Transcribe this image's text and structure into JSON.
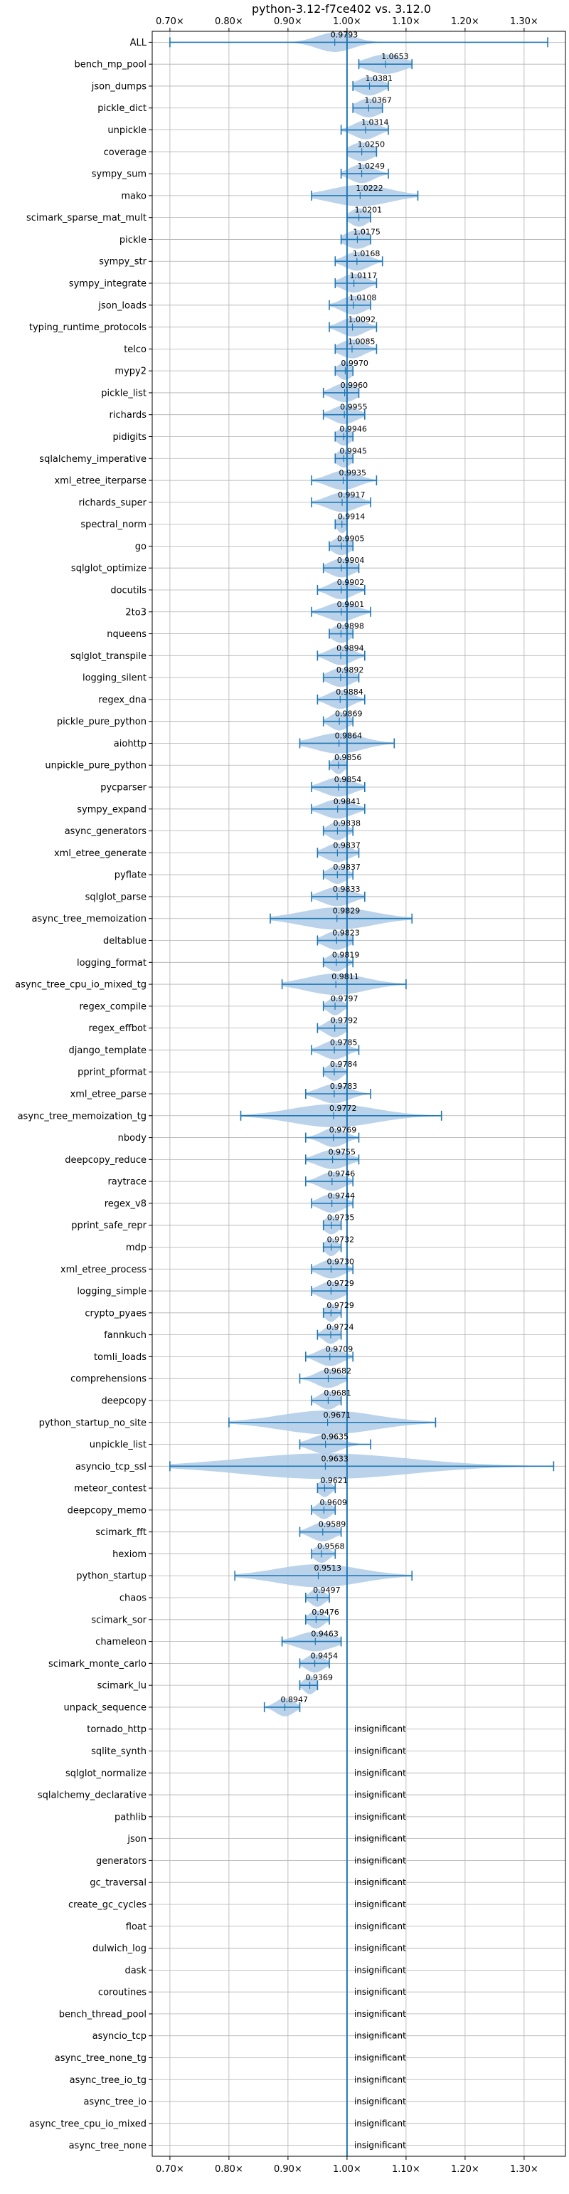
{
  "chart_data": {
    "type": "violin",
    "title": "python-3.12-f7ce402 vs. 3.12.0",
    "xlim": [
      0.67,
      1.37
    ],
    "x_ticks": [
      0.7,
      0.8,
      0.9,
      1.0,
      1.1,
      1.2,
      1.3
    ],
    "x_tick_labels": [
      "0.70×",
      "0.80×",
      "0.90×",
      "1.00×",
      "1.10×",
      "1.20×",
      "1.30×"
    ],
    "reference_line": 1.0,
    "grid": true,
    "colors": {
      "line": "#1f77b4",
      "violin": "#aecbe6",
      "grid": "#b0b0b0",
      "axis": "#000000"
    },
    "insignificant_label": "insignificant",
    "benchmarks": [
      {
        "name": "ALL",
        "mean": 0.9793,
        "label": "0.9793",
        "min": 0.7,
        "max": 1.34,
        "spread": 0.03
      },
      {
        "name": "bench_mp_pool",
        "mean": 1.0653,
        "label": "1.0653",
        "min": 1.02,
        "max": 1.11,
        "spread": 0.03
      },
      {
        "name": "json_dumps",
        "mean": 1.0381,
        "label": "1.0381",
        "min": 1.01,
        "max": 1.07,
        "spread": 0.02
      },
      {
        "name": "pickle_dict",
        "mean": 1.0367,
        "label": "1.0367",
        "min": 1.01,
        "max": 1.06,
        "spread": 0.02
      },
      {
        "name": "unpickle",
        "mean": 1.0314,
        "label": "1.0314",
        "min": 0.99,
        "max": 1.07,
        "spread": 0.02
      },
      {
        "name": "coverage",
        "mean": 1.025,
        "label": "1.0250",
        "min": 1.0,
        "max": 1.05,
        "spread": 0.02
      },
      {
        "name": "sympy_sum",
        "mean": 1.0249,
        "label": "1.0249",
        "min": 0.99,
        "max": 1.07,
        "spread": 0.02
      },
      {
        "name": "mako",
        "mean": 1.0222,
        "label": "1.0222",
        "min": 0.94,
        "max": 1.12,
        "spread": 0.05
      },
      {
        "name": "scimark_sparse_mat_mult",
        "mean": 1.0201,
        "label": "1.0201",
        "min": 1.0,
        "max": 1.04,
        "spread": 0.015
      },
      {
        "name": "pickle",
        "mean": 1.0175,
        "label": "1.0175",
        "min": 0.99,
        "max": 1.04,
        "spread": 0.02
      },
      {
        "name": "sympy_str",
        "mean": 1.0168,
        "label": "1.0168",
        "min": 0.98,
        "max": 1.06,
        "spread": 0.02
      },
      {
        "name": "sympy_integrate",
        "mean": 1.0117,
        "label": "1.0117",
        "min": 0.98,
        "max": 1.05,
        "spread": 0.02
      },
      {
        "name": "json_loads",
        "mean": 1.0108,
        "label": "1.0108",
        "min": 0.97,
        "max": 1.04,
        "spread": 0.02
      },
      {
        "name": "typing_runtime_protocols",
        "mean": 1.0092,
        "label": "1.0092",
        "min": 0.97,
        "max": 1.05,
        "spread": 0.02
      },
      {
        "name": "telco",
        "mean": 1.0085,
        "label": "1.0085",
        "min": 0.98,
        "max": 1.05,
        "spread": 0.02
      },
      {
        "name": "mypy2",
        "mean": 0.997,
        "label": "0.9970",
        "min": 0.98,
        "max": 1.01,
        "spread": 0.012
      },
      {
        "name": "pickle_list",
        "mean": 0.996,
        "label": "0.9960",
        "min": 0.96,
        "max": 1.02,
        "spread": 0.02
      },
      {
        "name": "richards",
        "mean": 0.9955,
        "label": "0.9955",
        "min": 0.96,
        "max": 1.03,
        "spread": 0.02
      },
      {
        "name": "pidigits",
        "mean": 0.9946,
        "label": "0.9946",
        "min": 0.98,
        "max": 1.01,
        "spread": 0.012
      },
      {
        "name": "sqlalchemy_imperative",
        "mean": 0.9945,
        "label": "0.9945",
        "min": 0.98,
        "max": 1.01,
        "spread": 0.012
      },
      {
        "name": "xml_etree_iterparse",
        "mean": 0.9935,
        "label": "0.9935",
        "min": 0.94,
        "max": 1.05,
        "spread": 0.025
      },
      {
        "name": "richards_super",
        "mean": 0.9917,
        "label": "0.9917",
        "min": 0.94,
        "max": 1.04,
        "spread": 0.025
      },
      {
        "name": "spectral_norm",
        "mean": 0.9914,
        "label": "0.9914",
        "min": 0.98,
        "max": 1.0,
        "spread": 0.008
      },
      {
        "name": "go",
        "mean": 0.9905,
        "label": "0.9905",
        "min": 0.97,
        "max": 1.01,
        "spread": 0.015
      },
      {
        "name": "sqlglot_optimize",
        "mean": 0.9904,
        "label": "0.9904",
        "min": 0.96,
        "max": 1.02,
        "spread": 0.02
      },
      {
        "name": "docutils",
        "mean": 0.9902,
        "label": "0.9902",
        "min": 0.95,
        "max": 1.03,
        "spread": 0.02
      },
      {
        "name": "2to3",
        "mean": 0.9901,
        "label": "0.9901",
        "min": 0.94,
        "max": 1.04,
        "spread": 0.025
      },
      {
        "name": "nqueens",
        "mean": 0.9898,
        "label": "0.9898",
        "min": 0.97,
        "max": 1.01,
        "spread": 0.015
      },
      {
        "name": "sqlglot_transpile",
        "mean": 0.9894,
        "label": "0.9894",
        "min": 0.95,
        "max": 1.03,
        "spread": 0.02
      },
      {
        "name": "logging_silent",
        "mean": 0.9892,
        "label": "0.9892",
        "min": 0.96,
        "max": 1.02,
        "spread": 0.02
      },
      {
        "name": "regex_dna",
        "mean": 0.9884,
        "label": "0.9884",
        "min": 0.95,
        "max": 1.03,
        "spread": 0.02
      },
      {
        "name": "pickle_pure_python",
        "mean": 0.9869,
        "label": "0.9869",
        "min": 0.96,
        "max": 1.01,
        "spread": 0.015
      },
      {
        "name": "aiohttp",
        "mean": 0.9864,
        "label": "0.9864",
        "min": 0.92,
        "max": 1.08,
        "spread": 0.04
      },
      {
        "name": "unpickle_pure_python",
        "mean": 0.9856,
        "label": "0.9856",
        "min": 0.97,
        "max": 1.0,
        "spread": 0.01
      },
      {
        "name": "pycparser",
        "mean": 0.9854,
        "label": "0.9854",
        "min": 0.94,
        "max": 1.03,
        "spread": 0.025
      },
      {
        "name": "sympy_expand",
        "mean": 0.9841,
        "label": "0.9841",
        "min": 0.94,
        "max": 1.03,
        "spread": 0.025
      },
      {
        "name": "async_generators",
        "mean": 0.9838,
        "label": "0.9838",
        "min": 0.96,
        "max": 1.01,
        "spread": 0.015
      },
      {
        "name": "xml_etree_generate",
        "mean": 0.9837,
        "label": "0.9837",
        "min": 0.95,
        "max": 1.02,
        "spread": 0.02
      },
      {
        "name": "pyflate",
        "mean": 0.9837,
        "label": "0.9837",
        "min": 0.96,
        "max": 1.01,
        "spread": 0.015
      },
      {
        "name": "sqlglot_parse",
        "mean": 0.9833,
        "label": "0.9833",
        "min": 0.94,
        "max": 1.03,
        "spread": 0.025
      },
      {
        "name": "async_tree_memoization",
        "mean": 0.9829,
        "label": "0.9829",
        "min": 0.87,
        "max": 1.11,
        "spread": 0.06
      },
      {
        "name": "deltablue",
        "mean": 0.9823,
        "label": "0.9823",
        "min": 0.95,
        "max": 1.01,
        "spread": 0.02
      },
      {
        "name": "logging_format",
        "mean": 0.9819,
        "label": "0.9819",
        "min": 0.96,
        "max": 1.01,
        "spread": 0.015
      },
      {
        "name": "async_tree_cpu_io_mixed_tg",
        "mean": 0.9811,
        "label": "0.9811",
        "min": 0.89,
        "max": 1.1,
        "spread": 0.05
      },
      {
        "name": "regex_compile",
        "mean": 0.9797,
        "label": "0.9797",
        "min": 0.96,
        "max": 1.0,
        "spread": 0.012
      },
      {
        "name": "regex_effbot",
        "mean": 0.9792,
        "label": "0.9792",
        "min": 0.95,
        "max": 1.0,
        "spread": 0.015
      },
      {
        "name": "django_template",
        "mean": 0.9785,
        "label": "0.9785",
        "min": 0.94,
        "max": 1.02,
        "spread": 0.02
      },
      {
        "name": "pprint_pformat",
        "mean": 0.9784,
        "label": "0.9784",
        "min": 0.96,
        "max": 1.0,
        "spread": 0.012
      },
      {
        "name": "xml_etree_parse",
        "mean": 0.9783,
        "label": "0.9783",
        "min": 0.93,
        "max": 1.04,
        "spread": 0.025
      },
      {
        "name": "async_tree_memoization_tg",
        "mean": 0.9772,
        "label": "0.9772",
        "min": 0.82,
        "max": 1.16,
        "spread": 0.07
      },
      {
        "name": "nbody",
        "mean": 0.9769,
        "label": "0.9769",
        "min": 0.93,
        "max": 1.02,
        "spread": 0.02
      },
      {
        "name": "deepcopy_reduce",
        "mean": 0.9755,
        "label": "0.9755",
        "min": 0.93,
        "max": 1.02,
        "spread": 0.025
      },
      {
        "name": "raytrace",
        "mean": 0.9746,
        "label": "0.9746",
        "min": 0.93,
        "max": 1.01,
        "spread": 0.02
      },
      {
        "name": "regex_v8",
        "mean": 0.9744,
        "label": "0.9744",
        "min": 0.94,
        "max": 1.01,
        "spread": 0.02
      },
      {
        "name": "pprint_safe_repr",
        "mean": 0.9735,
        "label": "0.9735",
        "min": 0.96,
        "max": 0.99,
        "spread": 0.012
      },
      {
        "name": "mdp",
        "mean": 0.9732,
        "label": "0.9732",
        "min": 0.96,
        "max": 0.99,
        "spread": 0.01
      },
      {
        "name": "xml_etree_process",
        "mean": 0.973,
        "label": "0.9730",
        "min": 0.94,
        "max": 1.01,
        "spread": 0.02
      },
      {
        "name": "logging_simple",
        "mean": 0.9729,
        "label": "0.9729",
        "min": 0.94,
        "max": 1.0,
        "spread": 0.02
      },
      {
        "name": "crypto_pyaes",
        "mean": 0.9729,
        "label": "0.9729",
        "min": 0.96,
        "max": 0.99,
        "spread": 0.01
      },
      {
        "name": "fannkuch",
        "mean": 0.9724,
        "label": "0.9724",
        "min": 0.95,
        "max": 0.99,
        "spread": 0.012
      },
      {
        "name": "tomli_loads",
        "mean": 0.9709,
        "label": "0.9709",
        "min": 0.93,
        "max": 1.01,
        "spread": 0.02
      },
      {
        "name": "comprehensions",
        "mean": 0.9682,
        "label": "0.9682",
        "min": 0.92,
        "max": 1.0,
        "spread": 0.02
      },
      {
        "name": "deepcopy",
        "mean": 0.9681,
        "label": "0.9681",
        "min": 0.94,
        "max": 0.99,
        "spread": 0.015
      },
      {
        "name": "python_startup_no_site",
        "mean": 0.9671,
        "label": "0.9671",
        "min": 0.8,
        "max": 1.15,
        "spread": 0.08
      },
      {
        "name": "unpickle_list",
        "mean": 0.9635,
        "label": "0.9635",
        "min": 0.92,
        "max": 1.04,
        "spread": 0.025
      },
      {
        "name": "asyncio_tcp_ssl",
        "mean": 0.9633,
        "label": "0.9633",
        "min": 0.7,
        "max": 1.35,
        "spread": 0.14
      },
      {
        "name": "meteor_contest",
        "mean": 0.9621,
        "label": "0.9621",
        "min": 0.95,
        "max": 0.98,
        "spread": 0.01
      },
      {
        "name": "deepcopy_memo",
        "mean": 0.9609,
        "label": "0.9609",
        "min": 0.94,
        "max": 0.98,
        "spread": 0.012
      },
      {
        "name": "scimark_fft",
        "mean": 0.9589,
        "label": "0.9589",
        "min": 0.92,
        "max": 0.99,
        "spread": 0.02
      },
      {
        "name": "hexiom",
        "mean": 0.9568,
        "label": "0.9568",
        "min": 0.94,
        "max": 0.98,
        "spread": 0.012
      },
      {
        "name": "python_startup",
        "mean": 0.9513,
        "label": "0.9513",
        "min": 0.81,
        "max": 1.11,
        "spread": 0.07
      },
      {
        "name": "chaos",
        "mean": 0.9497,
        "label": "0.9497",
        "min": 0.93,
        "max": 0.97,
        "spread": 0.012
      },
      {
        "name": "scimark_sor",
        "mean": 0.9476,
        "label": "0.9476",
        "min": 0.93,
        "max": 0.97,
        "spread": 0.012
      },
      {
        "name": "chameleon",
        "mean": 0.9463,
        "label": "0.9463",
        "min": 0.89,
        "max": 0.99,
        "spread": 0.03
      },
      {
        "name": "scimark_monte_carlo",
        "mean": 0.9454,
        "label": "0.9454",
        "min": 0.92,
        "max": 0.97,
        "spread": 0.015
      },
      {
        "name": "scimark_lu",
        "mean": 0.9369,
        "label": "0.9369",
        "min": 0.92,
        "max": 0.95,
        "spread": 0.01
      },
      {
        "name": "unpack_sequence",
        "mean": 0.8947,
        "label": "0.8947",
        "min": 0.86,
        "max": 0.92,
        "spread": 0.015
      },
      {
        "name": "tornado_http",
        "insignificant": true
      },
      {
        "name": "sqlite_synth",
        "insignificant": true
      },
      {
        "name": "sqlglot_normalize",
        "insignificant": true
      },
      {
        "name": "sqlalchemy_declarative",
        "insignificant": true
      },
      {
        "name": "pathlib",
        "insignificant": true
      },
      {
        "name": "json",
        "insignificant": true
      },
      {
        "name": "generators",
        "insignificant": true
      },
      {
        "name": "gc_traversal",
        "insignificant": true
      },
      {
        "name": "create_gc_cycles",
        "insignificant": true
      },
      {
        "name": "float",
        "insignificant": true
      },
      {
        "name": "dulwich_log",
        "insignificant": true
      },
      {
        "name": "dask",
        "insignificant": true
      },
      {
        "name": "coroutines",
        "insignificant": true
      },
      {
        "name": "bench_thread_pool",
        "insignificant": true
      },
      {
        "name": "asyncio_tcp",
        "insignificant": true
      },
      {
        "name": "async_tree_none_tg",
        "insignificant": true
      },
      {
        "name": "async_tree_io_tg",
        "insignificant": true
      },
      {
        "name": "async_tree_io",
        "insignificant": true
      },
      {
        "name": "async_tree_cpu_io_mixed",
        "insignificant": true
      },
      {
        "name": "async_tree_none",
        "insignificant": true
      }
    ]
  }
}
